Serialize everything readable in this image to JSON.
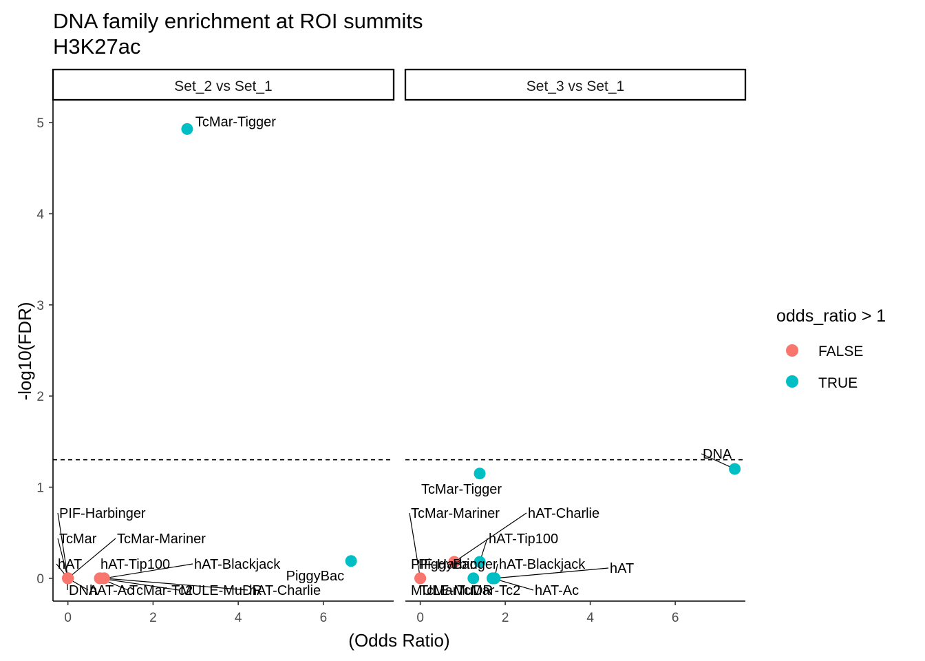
{
  "chart_data": {
    "type": "scatter",
    "title": "DNA family enrichment at ROI summits",
    "subtitle": "H3K27ac",
    "xlabel": "(Odds Ratio)",
    "ylabel": "-log10(FDR)",
    "xlim": [
      -0.35,
      7.65
    ],
    "ylim": [
      -0.25,
      5.25
    ],
    "x_ticks": [
      0,
      2,
      4,
      6
    ],
    "y_ticks": [
      0,
      1,
      2,
      3,
      4,
      5
    ],
    "threshold_y": 1.301,
    "grid": false,
    "legend": {
      "title": "odds_ratio > 1",
      "position": "right",
      "entries": [
        {
          "label": "FALSE",
          "color": "#F8766D"
        },
        {
          "label": "TRUE",
          "color": "#00BFC4"
        }
      ]
    },
    "panels": [
      {
        "strip": "Set_2 vs Set_1",
        "points": [
          {
            "label": "TcMar-Tigger",
            "x": 2.8,
            "y": 4.93,
            "positive": true
          },
          {
            "label": "PiggyBac",
            "x": 6.65,
            "y": 0.19,
            "positive": true
          },
          {
            "label": "PIF-Harbinger",
            "x": 0.0,
            "y": 0.0,
            "positive": false
          },
          {
            "label": "TcMar",
            "x": 0.0,
            "y": 0.0,
            "positive": false
          },
          {
            "label": "TcMar-Mariner",
            "x": 0.0,
            "y": 0.0,
            "positive": false
          },
          {
            "label": "hAT",
            "x": 0.0,
            "y": 0.0,
            "positive": false
          },
          {
            "label": "hAT-Tip100",
            "x": 0.0,
            "y": 0.0,
            "positive": false
          },
          {
            "label": "hAT-Blackjack",
            "x": 0.85,
            "y": 0.0,
            "positive": false
          },
          {
            "label": "DNA",
            "x": 0.0,
            "y": 0.0,
            "positive": false
          },
          {
            "label": "hAT-Ac",
            "x": 0.0,
            "y": 0.0,
            "positive": false
          },
          {
            "label": "TcMar-Tc2",
            "x": 0.75,
            "y": 0.0,
            "positive": false
          },
          {
            "label": "MULE-MuDR",
            "x": 0.75,
            "y": 0.0,
            "positive": false
          },
          {
            "label": "hAT-Charlie",
            "x": 0.85,
            "y": 0.0,
            "positive": false
          }
        ]
      },
      {
        "strip": "Set_3 vs Set_1",
        "points": [
          {
            "label": "DNA",
            "x": 7.4,
            "y": 1.2,
            "positive": true
          },
          {
            "label": "TcMar-Tigger",
            "x": 1.4,
            "y": 1.15,
            "positive": true
          },
          {
            "label": "TcMar-Mariner",
            "x": 0.0,
            "y": 0.0,
            "positive": false
          },
          {
            "label": "hAT-Charlie",
            "x": 0.8,
            "y": 0.18,
            "positive": false
          },
          {
            "label": "hAT-Tip100",
            "x": 1.4,
            "y": 0.18,
            "positive": true
          },
          {
            "label": "PiggyBac",
            "x": 0.8,
            "y": 0.18,
            "positive": false
          },
          {
            "label": "PIF-Harbinger",
            "x": 1.4,
            "y": 0.18,
            "positive": true
          },
          {
            "label": "hAT-Blackjack",
            "x": 1.75,
            "y": 0.0,
            "positive": true
          },
          {
            "label": "hAT",
            "x": 1.75,
            "y": 0.0,
            "positive": true
          },
          {
            "label": "MULE-MuDR",
            "x": 0.0,
            "y": 0.0,
            "positive": false
          },
          {
            "label": "TcMar",
            "x": 1.25,
            "y": 0.0,
            "positive": true
          },
          {
            "label": "TcMar-Tc2",
            "x": 1.7,
            "y": 0.0,
            "positive": true
          },
          {
            "label": "hAT-Ac",
            "x": 1.7,
            "y": 0.0,
            "positive": true
          }
        ]
      }
    ]
  }
}
